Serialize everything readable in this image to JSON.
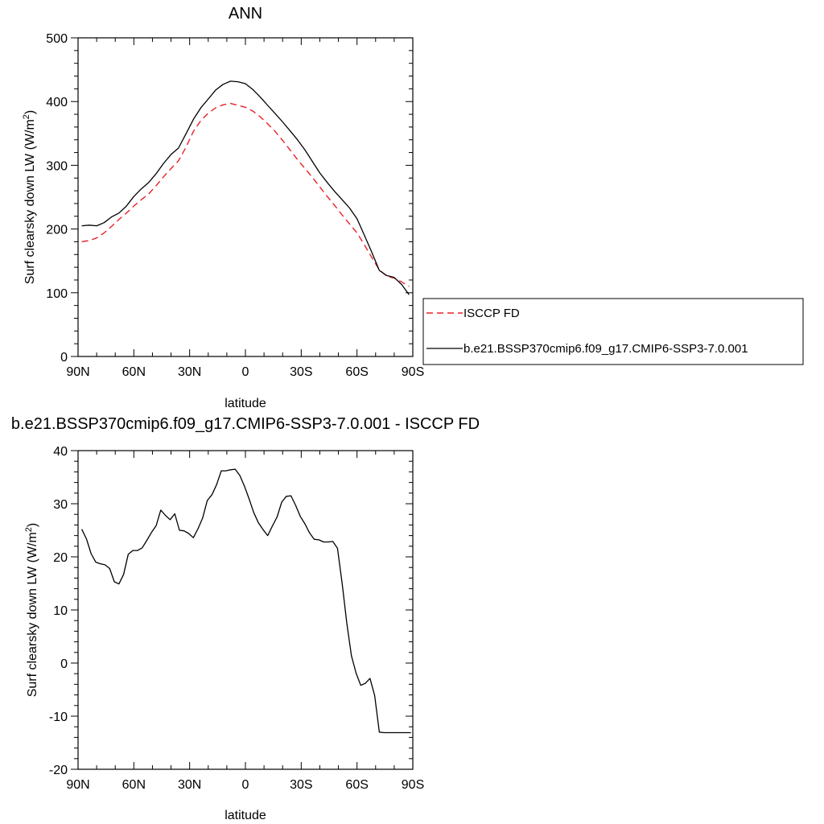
{
  "chart_data": [
    {
      "type": "line",
      "title": "ANN",
      "xlabel": "latitude",
      "ylabel": "Surf clearsky down LW (W/m",
      "ylabel_sup": "2",
      "ylabel_end": ")",
      "xlim": [
        90,
        -90
      ],
      "ylim": [
        0,
        500
      ],
      "x_ticks": [
        90,
        60,
        30,
        0,
        -30,
        -60,
        -90
      ],
      "x_tick_labels": [
        "90N",
        "60N",
        "30N",
        "0",
        "30S",
        "60S",
        "90S"
      ],
      "y_ticks": [
        0,
        100,
        200,
        300,
        400,
        500
      ],
      "y_tick_labels": [
        "0",
        "100",
        "200",
        "300",
        "400",
        "500"
      ],
      "grid": false,
      "legend_position": "right",
      "series": [
        {
          "name": "ISCCP FD",
          "color": "#e8202a",
          "dash": "dashed",
          "x": [
            88,
            84,
            80,
            76,
            72,
            68,
            64,
            60,
            56,
            52,
            48,
            44,
            40,
            36,
            32,
            28,
            24,
            20,
            16,
            12,
            8,
            4,
            0,
            -4,
            -8,
            -12,
            -16,
            -20,
            -24,
            -28,
            -32,
            -36,
            -40,
            -44,
            -48,
            -52,
            -56,
            -60,
            -64,
            -68,
            -72,
            -76,
            -80,
            -84,
            -88
          ],
          "values": [
            180,
            182,
            186,
            194,
            204,
            215,
            225,
            236,
            246,
            255,
            268,
            282,
            295,
            307,
            328,
            353,
            370,
            382,
            390,
            395,
            397,
            394,
            391,
            385,
            376,
            365,
            353,
            339,
            324,
            309,
            295,
            281,
            266,
            251,
            237,
            222,
            208,
            194,
            175,
            155,
            136,
            126,
            123,
            117,
            110
          ]
        },
        {
          "name": "b.e21.BSSP370cmip6.f09_g17.CMIP6-SSP3-7.0.001",
          "color": "#000000",
          "dash": "solid",
          "x": [
            88,
            84,
            80,
            76,
            72,
            68,
            64,
            60,
            56,
            52,
            48,
            44,
            40,
            36,
            32,
            28,
            24,
            20,
            16,
            12,
            8,
            4,
            0,
            -4,
            -8,
            -12,
            -16,
            -20,
            -24,
            -28,
            -32,
            -36,
            -40,
            -44,
            -48,
            -52,
            -56,
            -60,
            -64,
            -68,
            -72,
            -76,
            -80,
            -84,
            -88
          ],
          "values": [
            205,
            206,
            205,
            210,
            219,
            225,
            236,
            251,
            263,
            273,
            287,
            303,
            317,
            327,
            349,
            372,
            390,
            404,
            418,
            427,
            432,
            431,
            428,
            419,
            407,
            394,
            381,
            368,
            354,
            340,
            324,
            306,
            288,
            273,
            259,
            246,
            233,
            216,
            190,
            163,
            135,
            127,
            124,
            113,
            97
          ]
        }
      ]
    },
    {
      "type": "line",
      "title": "b.e21.BSSP370cmip6.f09_g17.CMIP6-SSP3-7.0.001 - ISCCP FD",
      "xlabel": "latitude",
      "ylabel": "Surf clearsky down LW (W/m",
      "ylabel_sup": "2",
      "ylabel_end": ")",
      "xlim": [
        90,
        -90
      ],
      "ylim": [
        -20,
        40
      ],
      "x_ticks": [
        90,
        60,
        30,
        0,
        -30,
        -60,
        -90
      ],
      "x_tick_labels": [
        "90N",
        "60N",
        "30N",
        "0",
        "30S",
        "60S",
        "90S"
      ],
      "y_ticks": [
        -20,
        -10,
        0,
        10,
        20,
        30,
        40
      ],
      "y_tick_labels": [
        "-20",
        "-10",
        "0",
        "10",
        "20",
        "30",
        "40"
      ],
      "grid": false,
      "series": [
        {
          "color": "#000000",
          "dash": "solid",
          "x": [
            88,
            85.5,
            83,
            80.5,
            78,
            75.5,
            73,
            70.5,
            68,
            65.5,
            63,
            60.5,
            58,
            55.5,
            53,
            50.5,
            48,
            45.5,
            43,
            40.5,
            38,
            35.5,
            33,
            30.5,
            28,
            25.5,
            23,
            20.5,
            18,
            15.5,
            13,
            10.5,
            8,
            5.5,
            3,
            0.5,
            -2,
            -4.5,
            -7,
            -9.5,
            -12,
            -14.5,
            -17,
            -19.5,
            -22,
            -24.5,
            -27,
            -29.5,
            -32,
            -34.5,
            -37,
            -39.5,
            -42,
            -44.5,
            -47,
            -49.5,
            -52,
            -54.5,
            -57,
            -59.5,
            -62,
            -64.5,
            -67,
            -69.5,
            -72,
            -74.5,
            -77,
            -79.5,
            -82,
            -84.5,
            -87,
            -89
          ],
          "values": [
            25.2,
            23.4,
            20.6,
            19.0,
            18.7,
            18.5,
            17.8,
            15.3,
            14.9,
            16.7,
            20.5,
            21.2,
            21.2,
            21.7,
            23.1,
            24.6,
            25.9,
            28.8,
            27.8,
            27.0,
            28.1,
            25.0,
            24.9,
            24.4,
            23.6,
            25.3,
            27.3,
            30.6,
            31.7,
            33.6,
            36.2,
            36.2,
            36.4,
            36.5,
            35.3,
            33.3,
            30.9,
            28.3,
            26.4,
            25.1,
            24.0,
            25.8,
            27.5,
            30.3,
            31.4,
            31.5,
            29.7,
            27.6,
            26.2,
            24.5,
            23.3,
            23.2,
            22.8,
            22.8,
            22.9,
            21.6,
            15.0,
            7.5,
            1.4,
            -1.9,
            -4.2,
            -3.8,
            -2.9,
            -6.1,
            -13.0,
            -13.1,
            -13.1,
            -13.1,
            -13.1,
            -13.1,
            -13.1,
            -13.1
          ]
        }
      ]
    }
  ]
}
